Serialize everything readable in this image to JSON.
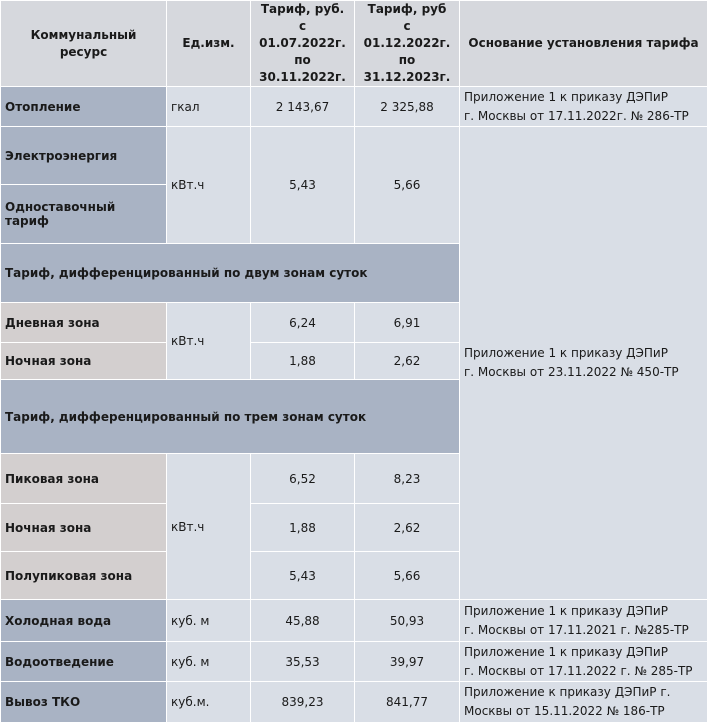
{
  "headers": {
    "resource": "Коммунальный ресурс",
    "unit": "Ед.изм.",
    "tariff1_line1": "Тариф, руб.",
    "tariff1_line2": "с 01.07.2022г.",
    "tariff1_line3": "по 30.11.2022г.",
    "tariff2_line1": "Тариф, руб",
    "tariff2_line2": "с 01.12.2022г.",
    "tariff2_line3": "по 31.12.2023г.",
    "basis": "Основание установления тарифа"
  },
  "heating": {
    "name": "Отопление",
    "unit": "гкал",
    "tariff1": "2 143,67",
    "tariff2": "2 325,88",
    "basis_line1": "Приложение 1 к приказу ДЭПиР",
    "basis_line2": "г. Москвы от 17.11.2022г. № 286-ТР"
  },
  "electricity": {
    "name": "Электроэнергия",
    "single_rate": "Одноставочный тариф",
    "unit": "кВт.ч",
    "tariff1": "5,43",
    "tariff2": "5,66",
    "basis_line1": "Приложение 1 к приказу ДЭПиР",
    "basis_line2": "г. Москвы от 23.11.2022 № 450-ТР"
  },
  "two_zone": {
    "title": "Тариф, дифференцированный по двум зонам суток",
    "unit": "кВт.ч",
    "rows": [
      {
        "name": "Дневная зона",
        "tariff1": "6,24",
        "tariff2": "6,91"
      },
      {
        "name": "Ночная зона",
        "tariff1": "1,88",
        "tariff2": "2,62"
      }
    ]
  },
  "three_zone": {
    "title": "Тариф, дифференцированный по трем зонам суток",
    "unit": "кВт.ч",
    "rows": [
      {
        "name": "Пиковая зона",
        "tariff1": "6,52",
        "tariff2": "8,23"
      },
      {
        "name": "Ночная зона",
        "tariff1": "1,88",
        "tariff2": "2,62"
      },
      {
        "name": "Полупиковая зона",
        "tariff1": "5,43",
        "tariff2": "5,66"
      }
    ]
  },
  "cold_water": {
    "name": "Холодная вода",
    "unit": "куб. м",
    "tariff1": "45,88",
    "tariff2": "50,93",
    "basis_line1": "Приложение 1 к приказу ДЭПиР",
    "basis_line2": "г. Москвы от 17.11.2021 г. №285-ТР"
  },
  "sewage": {
    "name": "Водоотведение",
    "unit": "куб. м",
    "tariff1": "35,53",
    "tariff2": "39,97",
    "basis_line1": "Приложение 1 к приказу ДЭПиР",
    "basis_line2": "г. Москвы от 17.11.2022 г. № 285-ТР"
  },
  "waste": {
    "name": "Вывоз ТКО",
    "unit": "куб.м.",
    "tariff1": "839,23",
    "tariff2": "841,77",
    "basis_line1": "Приложение к приказу ДЭПиР г.",
    "basis_line2": "Москвы от 15.11.2022 № 186-ТР"
  },
  "colors": {
    "header_bg": "#d6d8dd",
    "resource_blue": "#a9b3c4",
    "resource_gray": "#d3cfcf",
    "cell_bg": "#d9dee6",
    "border": "#ffffff"
  }
}
